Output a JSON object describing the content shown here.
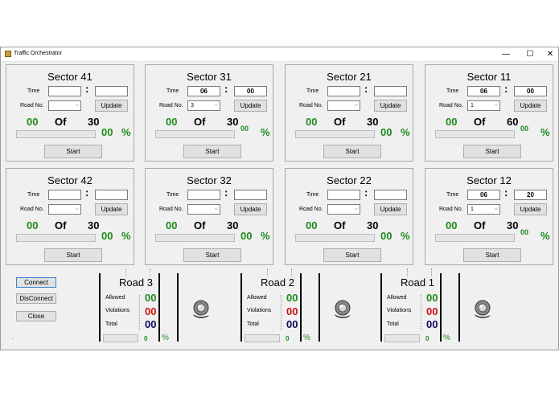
{
  "window": {
    "title": "Traffic   Orchestrator",
    "minimize": "—",
    "maximize": "☐",
    "close": "✕"
  },
  "labels": {
    "time": "Time",
    "road": "Road No.",
    "update": "Update",
    "start": "Start",
    "of": "Of",
    "percent": "%"
  },
  "sectors": [
    {
      "title": "Sector 41",
      "hour": "",
      "minute": "",
      "road": "",
      "count": "00",
      "total": "30",
      "pct": "00"
    },
    {
      "title": "Sector 31",
      "hour": "06",
      "minute": "00",
      "road": "3",
      "count": "00",
      "total": "30",
      "pct": "00"
    },
    {
      "title": "Sector 21",
      "hour": "",
      "minute": "",
      "road": "",
      "count": "00",
      "total": "30",
      "pct": "00"
    },
    {
      "title": "Sector 11",
      "hour": "06",
      "minute": "00",
      "road": "1",
      "count": "00",
      "total": "60",
      "pct": "00"
    },
    {
      "title": "Sector 42",
      "hour": "",
      "minute": "",
      "road": "",
      "count": "00",
      "total": "30",
      "pct": "00"
    },
    {
      "title": "Sector 32",
      "hour": "",
      "minute": "",
      "road": "",
      "count": "00",
      "total": "30",
      "pct": "00"
    },
    {
      "title": "Sector 22",
      "hour": "",
      "minute": "",
      "road": "",
      "count": "00",
      "total": "30",
      "pct": "00"
    },
    {
      "title": "Sector 12",
      "hour": "06",
      "minute": "20",
      "road": "1",
      "count": "00",
      "total": "30",
      "pct": "00"
    }
  ],
  "controls": {
    "connect": "Connect",
    "disconnect": "DisConnect",
    "close": "Close",
    "status": "."
  },
  "road_labels": {
    "allowed": "Allowed",
    "violations": "Violations",
    "total": "Total"
  },
  "roads": [
    {
      "title": "Road 3",
      "allowed": "00",
      "violations": "00",
      "total": "00",
      "progress": "0",
      "pct_sign": "%"
    },
    {
      "title": "Road 2",
      "allowed": "00",
      "violations": "00",
      "total": "00",
      "progress": "0",
      "pct_sign": "%"
    },
    {
      "title": "Road 1",
      "allowed": "00",
      "violations": "00",
      "total": "00",
      "progress": "0",
      "pct_sign": "%"
    }
  ],
  "colors": {
    "green": "#1c8a1c",
    "red": "#cc1111",
    "navy": "#0b0b5c"
  }
}
